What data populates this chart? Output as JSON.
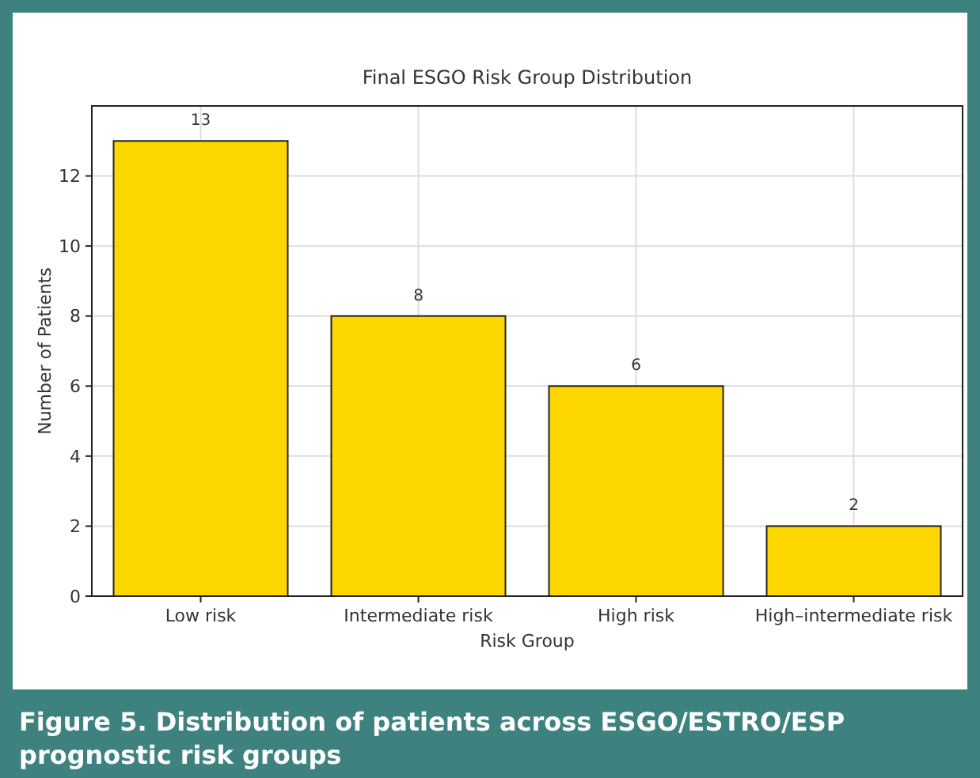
{
  "chart_data": {
    "type": "bar",
    "title": "Final ESGO Risk Group Distribution",
    "xlabel": "Risk Group",
    "ylabel": "Number of Patients",
    "categories": [
      "Low risk",
      "Intermediate risk",
      "High risk",
      "High–intermediate risk"
    ],
    "values": [
      13,
      8,
      6,
      2
    ],
    "color": "#ffd700",
    "data_labels": true,
    "grid": true,
    "ylim": [
      0,
      14
    ],
    "yticks": [
      0,
      2,
      4,
      6,
      8,
      10,
      12
    ],
    "annotations": [
      "Figure 5. Distribution of patients across ESGO/ESTRO/ESP prognostic risk groups"
    ]
  }
}
